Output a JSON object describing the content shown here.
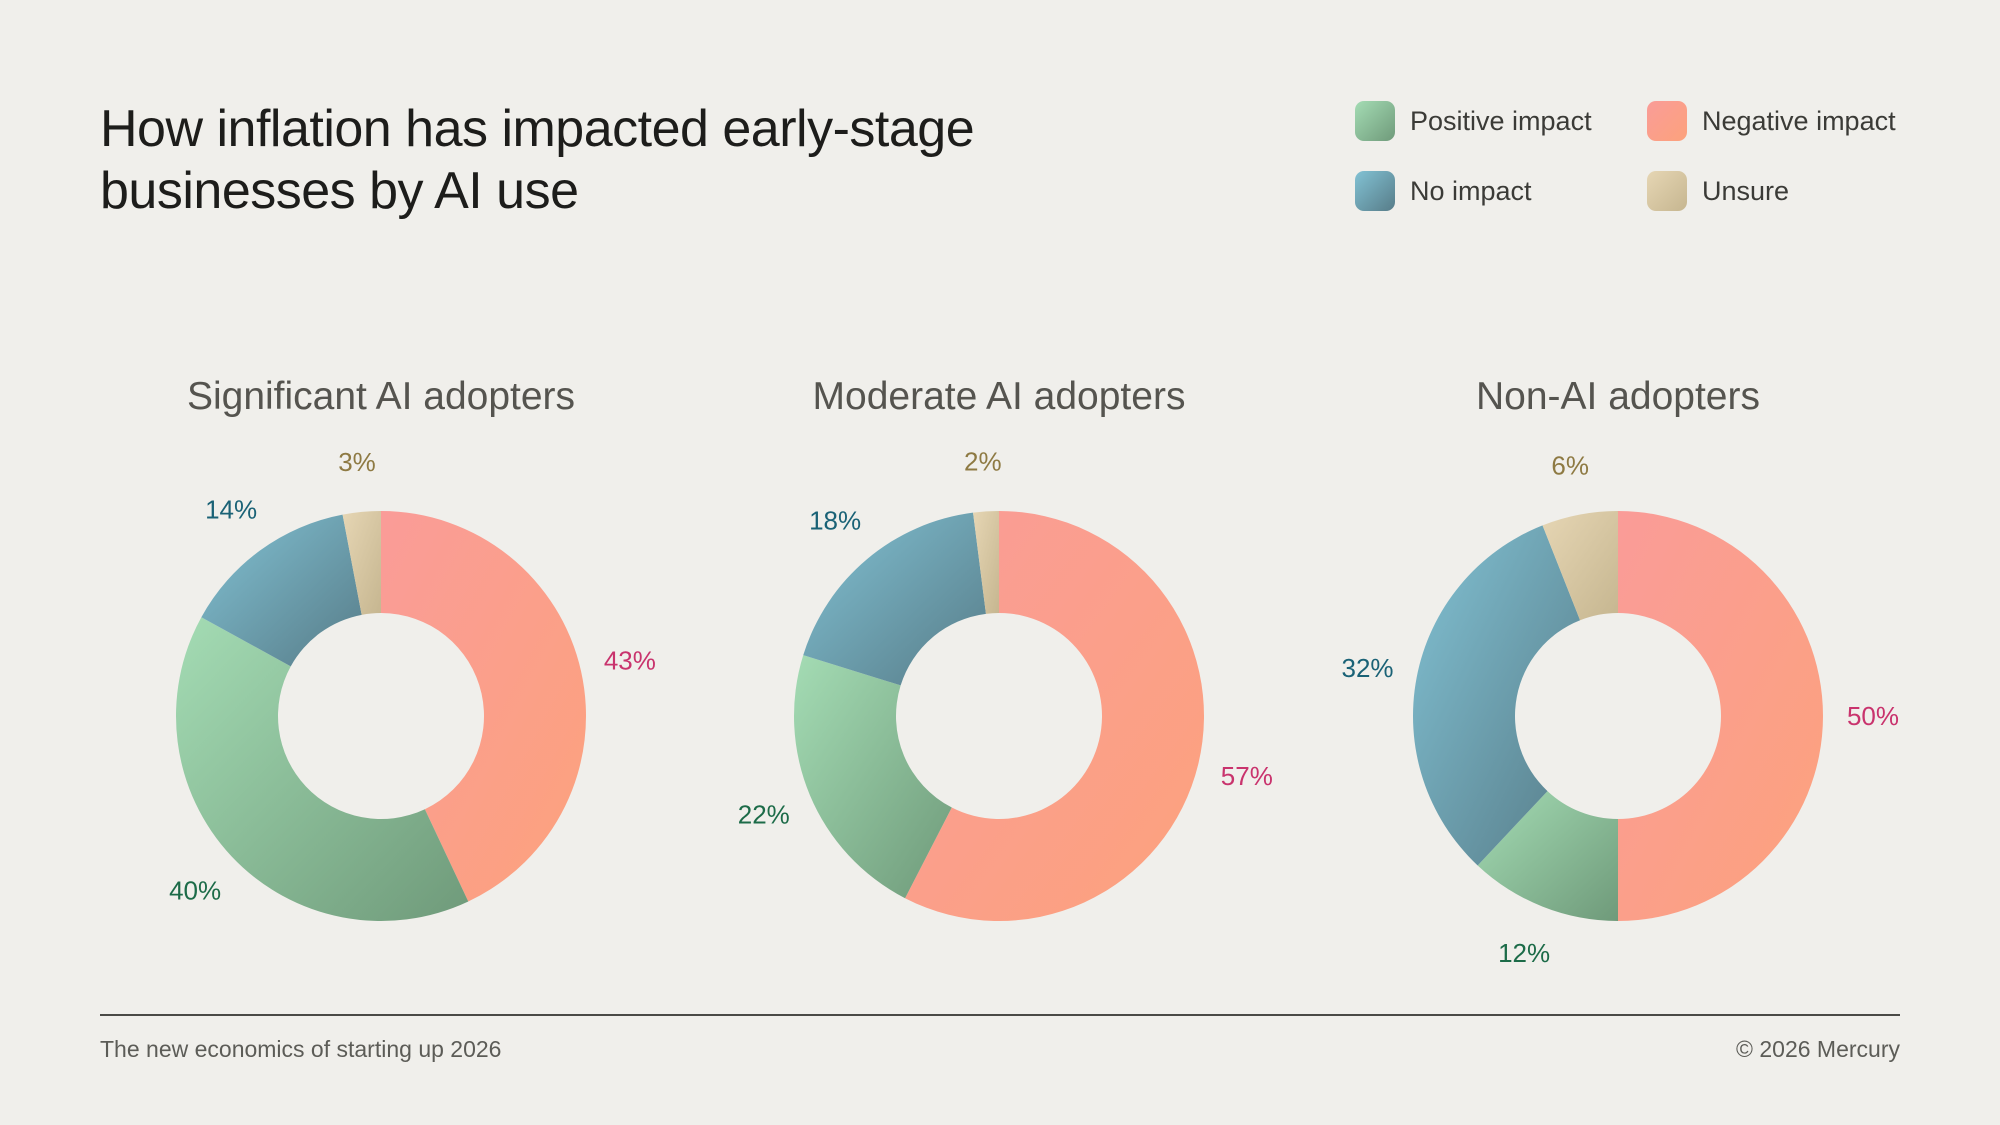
{
  "header": {
    "title_line1": "How inflation has impacted early-stage",
    "title_line2": "businesses by AI use"
  },
  "legend": [
    {
      "label": "Positive impact",
      "key": "positive"
    },
    {
      "label": "Negative impact",
      "key": "negative"
    },
    {
      "label": "No impact",
      "key": "none"
    },
    {
      "label": "Unsure",
      "key": "unsure"
    }
  ],
  "colors": {
    "positive": [
      "#a4dcb4",
      "#6f9a7a"
    ],
    "negative": [
      "#fa9c98",
      "#fca27c"
    ],
    "none": [
      "#82c2d4",
      "#577c88"
    ],
    "unsure": [
      "#e6d6b4",
      "#c6b690"
    ],
    "label_positive": "#1c6b48",
    "label_negative": "#c9336d",
    "label_none": "#1a6276",
    "label_unsure": "#8e7a43",
    "chart_title": "#55544f"
  },
  "chart_data": [
    {
      "type": "pie",
      "title": "Significant AI adopters",
      "slices": [
        {
          "key": "negative",
          "label": "43%",
          "value": 43
        },
        {
          "key": "positive",
          "label": "40%",
          "value": 40
        },
        {
          "key": "none",
          "label": "14%",
          "value": 14
        },
        {
          "key": "unsure",
          "label": "3%",
          "value": 3
        }
      ]
    },
    {
      "type": "pie",
      "title": "Moderate AI adopters",
      "slices": [
        {
          "key": "negative",
          "label": "57%",
          "value": 57
        },
        {
          "key": "positive",
          "label": "22%",
          "value": 22
        },
        {
          "key": "none",
          "label": "18%",
          "value": 18
        },
        {
          "key": "unsure",
          "label": "2%",
          "value": 2
        }
      ]
    },
    {
      "type": "pie",
      "title": "Non-AI adopters",
      "slices": [
        {
          "key": "negative",
          "label": "50%",
          "value": 50
        },
        {
          "key": "positive",
          "label": "12%",
          "value": 12
        },
        {
          "key": "none",
          "label": "32%",
          "value": 32
        },
        {
          "key": "unsure",
          "label": "6%",
          "value": 6
        }
      ]
    }
  ],
  "footer": {
    "left": "The new economics of starting up 2026",
    "right": "© 2026 Mercury"
  }
}
